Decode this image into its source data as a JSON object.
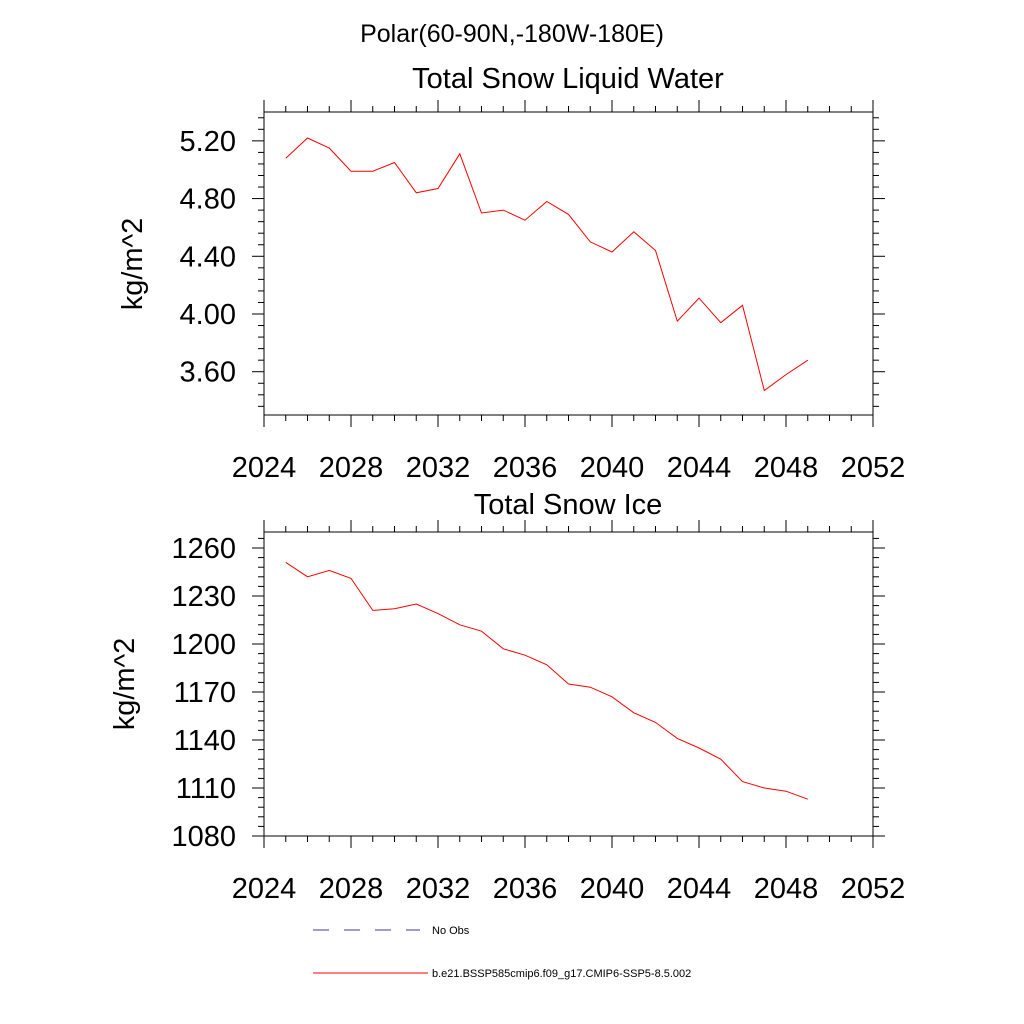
{
  "page_title": "Polar(60-90N,-180W-180E)",
  "legend": {
    "items": [
      {
        "label": "No Obs",
        "style": "dashed",
        "color": "#3a3a8c"
      },
      {
        "label": "b.e21.BSSP585cmip6.f09_g17.CMIP6-SSP5-8.5.002",
        "style": "solid",
        "color": "#ff0000"
      }
    ]
  },
  "chart_data": [
    {
      "type": "line",
      "title": "Total Snow Liquid Water",
      "xlabel": "",
      "ylabel": "kg/m^2",
      "xlim": [
        2024,
        2052
      ],
      "ylim": [
        3.3,
        5.4
      ],
      "xticks": [
        2024,
        2028,
        2032,
        2036,
        2040,
        2044,
        2048,
        2052
      ],
      "xtick_labels": [
        "2024",
        "2028",
        "2032",
        "2036",
        "2040",
        "2044",
        "2048",
        "2052"
      ],
      "yticks": [
        3.6,
        4.0,
        4.4,
        4.8,
        5.2
      ],
      "ytick_labels": [
        "3.60",
        "4.00",
        "4.40",
        "4.80",
        "5.20"
      ],
      "grid": false,
      "x": [
        2025,
        2026,
        2027,
        2028,
        2029,
        2030,
        2031,
        2032,
        2033,
        2034,
        2035,
        2036,
        2037,
        2038,
        2039,
        2040,
        2041,
        2042,
        2043,
        2044,
        2045,
        2046,
        2047,
        2048,
        2049
      ],
      "series": [
        {
          "name": "b.e21.BSSP585cmip6.f09_g17.CMIP6-SSP5-8.5.002",
          "color": "#ff0000",
          "values": [
            5.08,
            5.22,
            5.15,
            4.99,
            4.99,
            5.05,
            4.84,
            4.87,
            5.11,
            4.7,
            4.72,
            4.65,
            4.78,
            4.69,
            4.5,
            4.43,
            4.57,
            4.44,
            3.95,
            4.11,
            3.94,
            4.06,
            3.47,
            3.58,
            3.68
          ]
        }
      ]
    },
    {
      "type": "line",
      "title": "Total Snow Ice",
      "xlabel": "",
      "ylabel": "kg/m^2",
      "xlim": [
        2024,
        2052
      ],
      "ylim": [
        1080,
        1270
      ],
      "xticks": [
        2024,
        2028,
        2032,
        2036,
        2040,
        2044,
        2048,
        2052
      ],
      "xtick_labels": [
        "2024",
        "2028",
        "2032",
        "2036",
        "2040",
        "2044",
        "2048",
        "2052"
      ],
      "yticks": [
        1080,
        1110,
        1140,
        1170,
        1200,
        1230,
        1260
      ],
      "ytick_labels": [
        "1080",
        "1110",
        "1140",
        "1170",
        "1200",
        "1230",
        "1260"
      ],
      "grid": false,
      "x": [
        2025,
        2026,
        2027,
        2028,
        2029,
        2030,
        2031,
        2032,
        2033,
        2034,
        2035,
        2036,
        2037,
        2038,
        2039,
        2040,
        2041,
        2042,
        2043,
        2044,
        2045,
        2046,
        2047,
        2048,
        2049
      ],
      "series": [
        {
          "name": "b.e21.BSSP585cmip6.f09_g17.CMIP6-SSP5-8.5.002",
          "color": "#ff0000",
          "values": [
            1251,
            1242,
            1246,
            1241,
            1221,
            1222,
            1225,
            1219,
            1212,
            1208,
            1197,
            1193,
            1187,
            1175,
            1173,
            1167,
            1157,
            1151,
            1141,
            1135,
            1128,
            1114,
            1110,
            1108,
            1103
          ]
        }
      ]
    }
  ]
}
